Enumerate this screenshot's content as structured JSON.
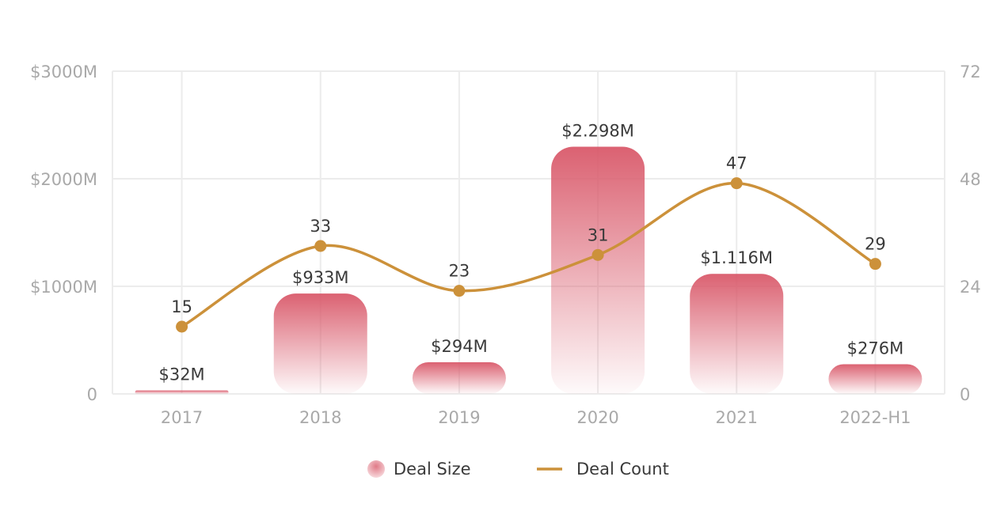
{
  "chart_data": {
    "type": "bar",
    "categories": [
      "2017",
      "2018",
      "2019",
      "2020",
      "2021",
      "2022-H1"
    ],
    "series": [
      {
        "name": "Deal Size",
        "kind": "bar",
        "axis": "left",
        "values": [
          32,
          933,
          294,
          2298,
          1116,
          276
        ],
        "labels": [
          "$32M",
          "$933M",
          "$294M",
          "$2.298M",
          "$1.116M",
          "$276M"
        ]
      },
      {
        "name": "Deal Count",
        "kind": "line",
        "axis": "right",
        "values": [
          15,
          33,
          23,
          31,
          47,
          29
        ],
        "labels": [
          "15",
          "33",
          "23",
          "31",
          "47",
          "29"
        ]
      }
    ],
    "y_left": {
      "ylim": [
        0,
        3000
      ],
      "ticks": [
        0,
        1000,
        2000,
        3000
      ],
      "tick_labels": [
        "0",
        "$1000M",
        "$2000M",
        "$3000M"
      ]
    },
    "y_right": {
      "ylim": [
        0,
        72
      ],
      "ticks": [
        0,
        24,
        48,
        72
      ],
      "tick_labels": [
        "0",
        "24",
        "48",
        "72"
      ]
    },
    "grid": true,
    "legend": {
      "position": "bottom-center",
      "items": [
        "Deal Size",
        "Deal Count"
      ]
    },
    "colors": {
      "bar": "#d9596a",
      "line": "#cc913a",
      "grid": "#ececec",
      "tick": "#a9a9a9",
      "label": "#3a3a3a"
    }
  }
}
